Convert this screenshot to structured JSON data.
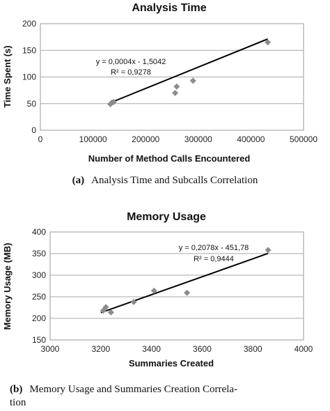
{
  "chart_data": [
    {
      "type": "scatter",
      "title": "Analysis Time",
      "xlabel": "Number of Method Calls  Encountered",
      "ylabel": "Time Spent (s)",
      "xlim": [
        0,
        500000
      ],
      "ylim": [
        0,
        200
      ],
      "xticks": [
        0,
        100000,
        200000,
        300000,
        400000,
        500000
      ],
      "yticks": [
        0,
        50,
        100,
        150,
        200
      ],
      "x_tick_labels": [
        "0",
        "100000",
        "200000",
        "300000",
        "400000",
        "500000"
      ],
      "y_tick_labels": [
        "0",
        "50",
        "100",
        "150",
        "200"
      ],
      "grid": "horizontal",
      "points": [
        {
          "x": 133000,
          "y": 49
        },
        {
          "x": 136000,
          "y": 52
        },
        {
          "x": 139000,
          "y": 53
        },
        {
          "x": 256000,
          "y": 70
        },
        {
          "x": 259000,
          "y": 82
        },
        {
          "x": 290000,
          "y": 93
        },
        {
          "x": 432000,
          "y": 165
        }
      ],
      "trendline": {
        "slope": 0.0004,
        "intercept": -1.5042,
        "x_range": [
          130000,
          432000
        ],
        "equation": "y = 0,0004x - 1,5042",
        "r_squared": "R² = 0,9278"
      },
      "caption_tag": "(a)",
      "caption": "Analysis Time and Subcalls Correlation"
    },
    {
      "type": "scatter",
      "title": "Memory Usage",
      "xlabel": "Summaries Created",
      "ylabel": "Memory Usage  (MB)",
      "xlim": [
        3000,
        4000
      ],
      "ylim": [
        150,
        400
      ],
      "xticks": [
        3000,
        3200,
        3400,
        3600,
        3800,
        4000
      ],
      "yticks": [
        150,
        200,
        250,
        300,
        350,
        400
      ],
      "x_tick_labels": [
        "3000",
        "3200",
        "3400",
        "3600",
        "3800",
        "4000"
      ],
      "y_tick_labels": [
        "150",
        "200",
        "250",
        "300",
        "350",
        "400"
      ],
      "grid": "horizontal",
      "points": [
        {
          "x": 3210,
          "y": 218
        },
        {
          "x": 3220,
          "y": 226
        },
        {
          "x": 3240,
          "y": 214
        },
        {
          "x": 3330,
          "y": 238
        },
        {
          "x": 3410,
          "y": 264
        },
        {
          "x": 3540,
          "y": 259
        },
        {
          "x": 3860,
          "y": 358
        }
      ],
      "trendline": {
        "slope": 0.2078,
        "intercept": -451.78,
        "x_range": [
          3200,
          3860
        ],
        "equation": "y = 0,2078x - 451,78",
        "r_squared": "R² = 0,9444"
      },
      "caption_tag": "(b)",
      "caption_lines": [
        "Memory Usage and Summaries Creation Correla-",
        "tion"
      ]
    }
  ]
}
